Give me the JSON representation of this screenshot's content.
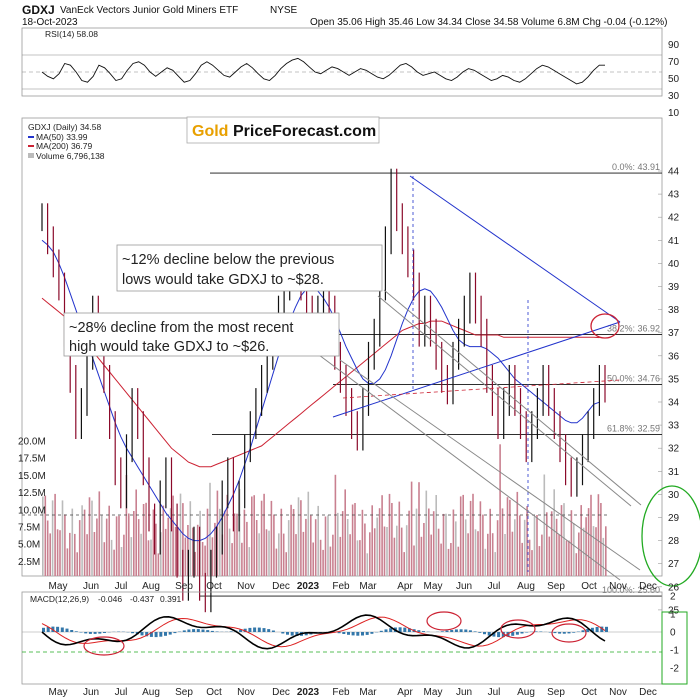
{
  "header": {
    "symbol": "GDXJ",
    "name": "VanEck Vectors Junior Gold Miners ETF",
    "exchange": "NYSE",
    "date": "18-Oct-2023",
    "ohlc": "Open 35.06  High 35.46  Low 34.34  Close 34.58  Volume 6.8M  Chg -0.04 (-0.12%)"
  },
  "logo": {
    "part1": "Gold",
    "part2": "PriceForecast.com"
  },
  "rsi": {
    "label": "RSI(14) 58.08",
    "ticks": [
      "90",
      "70",
      "50",
      "30",
      "10"
    ],
    "values": [
      50,
      45,
      42,
      48,
      60,
      58,
      50,
      40,
      38,
      45,
      58,
      55,
      48,
      40,
      42,
      52,
      60,
      62,
      58,
      50,
      45,
      50,
      55,
      52,
      45,
      38,
      40,
      48,
      58,
      62,
      58,
      52,
      46,
      44,
      50,
      56,
      60,
      55,
      48,
      42,
      40,
      46,
      54,
      60,
      64,
      66,
      62,
      56,
      50,
      48,
      52,
      56,
      54,
      50,
      46,
      50,
      54,
      52,
      48,
      44,
      42,
      46,
      52,
      58,
      60,
      56,
      50,
      46,
      48,
      50,
      46,
      42,
      40,
      44,
      50,
      54,
      52,
      48,
      44,
      40,
      42,
      46,
      44,
      40,
      38,
      42,
      48,
      54,
      58,
      56,
      52,
      48,
      44,
      40,
      36,
      38,
      44,
      52,
      58,
      58
    ]
  },
  "price": {
    "legend": {
      "main": "GDXJ (Daily) 34.58",
      "ma50": "MA(50) 33.99",
      "ma200": "MA(200) 36.79",
      "volume": "Volume 6,796,138"
    },
    "yticks": [
      "44",
      "43",
      "42",
      "41",
      "40",
      "39",
      "38",
      "37",
      "36",
      "35",
      "34",
      "33",
      "32",
      "31",
      "30",
      "29",
      "28",
      "27",
      "26",
      "25"
    ],
    "close": [
      42,
      41,
      40,
      39,
      37,
      35,
      33,
      34,
      36,
      38,
      37,
      35,
      33,
      31,
      30,
      32,
      34,
      33,
      31,
      29,
      28,
      30,
      31,
      29,
      27,
      26,
      27,
      28,
      26,
      25.5,
      27,
      28,
      30,
      31,
      29,
      30,
      32,
      33,
      34,
      35,
      36,
      37,
      38,
      39,
      39.5,
      40,
      39,
      38,
      37,
      38,
      39,
      38,
      36,
      35,
      34,
      33,
      32.5,
      34,
      36,
      37,
      39,
      41,
      43.5,
      42,
      41,
      40,
      39,
      37,
      38,
      37,
      36,
      35,
      34.5,
      36,
      37,
      38,
      39,
      38,
      37,
      35,
      34,
      33,
      34,
      35,
      34,
      33,
      32,
      33,
      34,
      35,
      34,
      33,
      32,
      31,
      30.5,
      31,
      32,
      33,
      34,
      35,
      34.58
    ],
    "ma50": [
      41,
      40.8,
      40.5,
      40,
      39.4,
      38.7,
      38,
      37.3,
      36.6,
      35.9,
      35.2,
      34.5,
      33.8,
      33.1,
      32.5,
      32,
      31.6,
      31.2,
      30.8,
      30.4,
      30,
      29.6,
      29.2,
      28.9,
      28.6,
      28.3,
      28.1,
      28,
      28,
      28.1,
      28.3,
      28.6,
      29,
      29.5,
      30,
      30.6,
      31.3,
      32,
      32.8,
      33.6,
      34.4,
      35.2,
      36,
      36.8,
      37.5,
      38.1,
      38.6,
      38.9,
      39,
      38.8,
      38.5,
      38.1,
      37.6,
      37,
      36.4,
      35.9,
      35.4,
      35,
      34.8,
      34.8,
      35,
      35.4,
      36,
      36.7,
      37.4,
      38,
      38.5,
      38.8,
      38.9,
      38.8,
      38.5,
      38.1,
      37.6,
      37.1,
      36.7,
      36.5,
      36.4,
      36.4,
      36.4,
      36.3,
      36.1,
      35.9,
      35.6,
      35.3,
      35,
      34.8,
      34.6,
      34.4,
      34.2,
      34,
      33.8,
      33.6,
      33.4,
      33.2,
      33.1,
      33.1,
      33.3,
      33.6,
      33.9,
      33.99
    ],
    "ma200": [
      38.5,
      38.3,
      38.1,
      37.9,
      37.7,
      37.4,
      37.1,
      36.8,
      36.5,
      36.2,
      35.9,
      35.6,
      35.3,
      35,
      34.7,
      34.4,
      34.1,
      33.8,
      33.5,
      33.2,
      32.9,
      32.6,
      32.3,
      32,
      31.8,
      31.6,
      31.4,
      31.3,
      31.2,
      31.2,
      31.2,
      31.3,
      31.4,
      31.5,
      31.6,
      31.7,
      31.8,
      31.9,
      32,
      32.1,
      32.3,
      32.5,
      32.7,
      32.9,
      33.1,
      33.3,
      33.5,
      33.7,
      33.9,
      34.1,
      34.3,
      34.5,
      34.7,
      34.9,
      35.1,
      35.3,
      35.5,
      35.7,
      35.9,
      36.1,
      36.3,
      36.5,
      36.7,
      36.9,
      37.1,
      37.2,
      37.3,
      37.4,
      37.4,
      37.5,
      37.5,
      37.5,
      37.4,
      37.3,
      37.2,
      37.1,
      37,
      36.9,
      36.9,
      36.9,
      36.9,
      36.9,
      36.8,
      36.8,
      36.8,
      36.8,
      36.8,
      36.8,
      36.8,
      36.8,
      36.8,
      36.8,
      36.8,
      36.8,
      36.8,
      36.8,
      36.8,
      36.8,
      36.8,
      36.79
    ],
    "volume_ticks": [
      "20.0M",
      "17.5M",
      "15.0M",
      "12.5M",
      "10.0M",
      "7.5M",
      "5.0M",
      "2.5M"
    ],
    "fib_levels": [
      {
        "label": "0.0%: 43.91",
        "value": 43.91
      },
      {
        "label": "38.2%: 36.92",
        "value": 36.92
      },
      {
        "label": "50.0%: 34.76",
        "value": 34.76
      },
      {
        "label": "61.8%: 32.59",
        "value": 32.59
      },
      {
        "label": "100.0%: 25.60",
        "value": 25.6
      }
    ],
    "notes": [
      "~12% decline below the previous",
      "lows would take GDXJ to ~$28.",
      "~28% decline from the most recent",
      "high would take GDXJ to ~$26."
    ]
  },
  "macd": {
    "label_prefix": "MACD(12,26,9)",
    "v1": "-0.046",
    "v2": "-0.437",
    "v3": "0.391",
    "ticks": [
      "2",
      "1",
      "0",
      "-1",
      "-2"
    ]
  },
  "xaxis": {
    "labels": [
      "May",
      "Jun",
      "Jul",
      "Aug",
      "Sep",
      "Oct",
      "Nov",
      "Dec",
      "2023",
      "Feb",
      "Mar",
      "Apr",
      "May",
      "Jun",
      "Jul",
      "Aug",
      "Sep",
      "Oct",
      "Nov",
      "Dec"
    ]
  },
  "colors": {
    "price": "#8b0a2a",
    "ma50": "#2233cc",
    "ma200": "#cc2233",
    "volume": "#c07080",
    "macd": "#000000",
    "signal": "#dd2222",
    "hist": "#3377aa",
    "note_red": "#cc2233",
    "circle_green": "#22aa22"
  }
}
